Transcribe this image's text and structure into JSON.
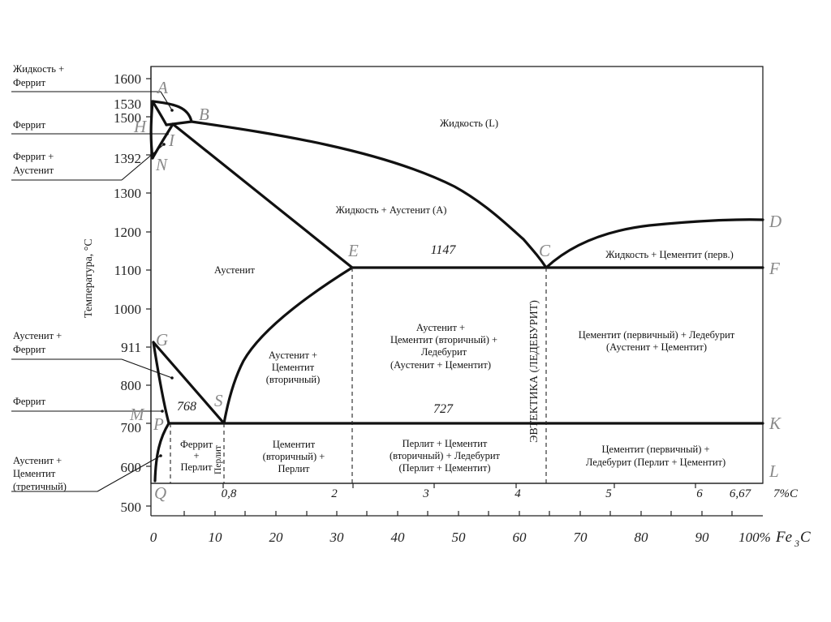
{
  "side_labels": {
    "liquid_ferrite_1": "Жидкость +",
    "liquid_ferrite_2": "Феррит",
    "ferrite_top": "Феррит",
    "ferrite_austenite_1": "Феррит +",
    "ferrite_austenite_2": "Аустенит",
    "austenite_ferrite_1": "Аустенит +",
    "austenite_ferrite_2": "Феррит",
    "ferrite_low": "Феррит",
    "austenite_cementite_1": "Аустенит +",
    "austenite_cementite_2": "Цементит",
    "austenite_cementite_3": "(третичный)"
  },
  "y_axis": {
    "title": "Температура, °С",
    "ticks": [
      "1600",
      "1530",
      "1500",
      "1392",
      "1300",
      "1200",
      "1100",
      "1000",
      "911",
      "800",
      "700",
      "600",
      "500"
    ]
  },
  "x_axis_bottom": {
    "ticks": [
      "0",
      "10",
      "20",
      "30",
      "40",
      "50",
      "60",
      "70",
      "80",
      "90",
      "100%"
    ],
    "unit_main": "Fe",
    "unit_sub": "3",
    "unit_tail": "C"
  },
  "x_axis_carbon": {
    "ticks": [
      "0,8",
      "2",
      "3",
      "4",
      "5",
      "6",
      "6,67"
    ],
    "unit": "7%C"
  },
  "points": {
    "A": "A",
    "B": "B",
    "H": "H",
    "I": "I",
    "N": "N",
    "E": "E",
    "C": "C",
    "D": "D",
    "F": "F",
    "G": "G",
    "S": "S",
    "M": "M",
    "P": "P",
    "K": "K",
    "Q": "Q",
    "L": "L"
  },
  "temps": {
    "eutectic": "1147",
    "eutectoid": "727",
    "curie": "768"
  },
  "regions": {
    "liquid": "Жидкость (L)",
    "liquid_austenite": "Жидкость + Аустенит (А)",
    "liquid_cementite": "Жидкость + Цементит (перв.)",
    "austenite": "Аустенит",
    "aust_cem_sec_1": "Аустенит +",
    "aust_cem_sec_2": "Цементит",
    "aust_cem_sec_3": "(вторичный)",
    "aust_cem_led_1": "Аустенит +",
    "aust_cem_led_2": "Цементит (вторичный) +",
    "aust_cem_led_3": "Ледебурит",
    "aust_cem_led_4": "(Аустенит + Цементит)",
    "cem_prim_led_1": "Цементит (первичный) + Ледебурит",
    "cem_prim_led_2": "(Аустенит + Цементит)",
    "ferrite_pearlite_1": "Феррит",
    "ferrite_pearlite_2": "+",
    "ferrite_pearlite_3": "Перлит",
    "pearlite_v": "Перлит",
    "cem_sec_pearl_1": "Цементит",
    "cem_sec_pearl_2": "(вторичный) +",
    "cem_sec_pearl_3": "Перлит",
    "pearl_cem_led_1": "Перлит + Цементит",
    "pearl_cem_led_2": "(вторичный) + Ледебурит",
    "pearl_cem_led_3": "(Перлит + Цементит)",
    "cem_prim_led_low_1": "Цементит (первичный) +",
    "cem_prim_led_low_2": "Ледебурит (Перлит + Цементит)",
    "eutectic_v": "ЭВТЕКТИКА (ЛЕДЕБУРИТ)"
  },
  "colors": {
    "line": "#111111",
    "point_letters": "#8a8a8a",
    "background": "#ffffff"
  }
}
